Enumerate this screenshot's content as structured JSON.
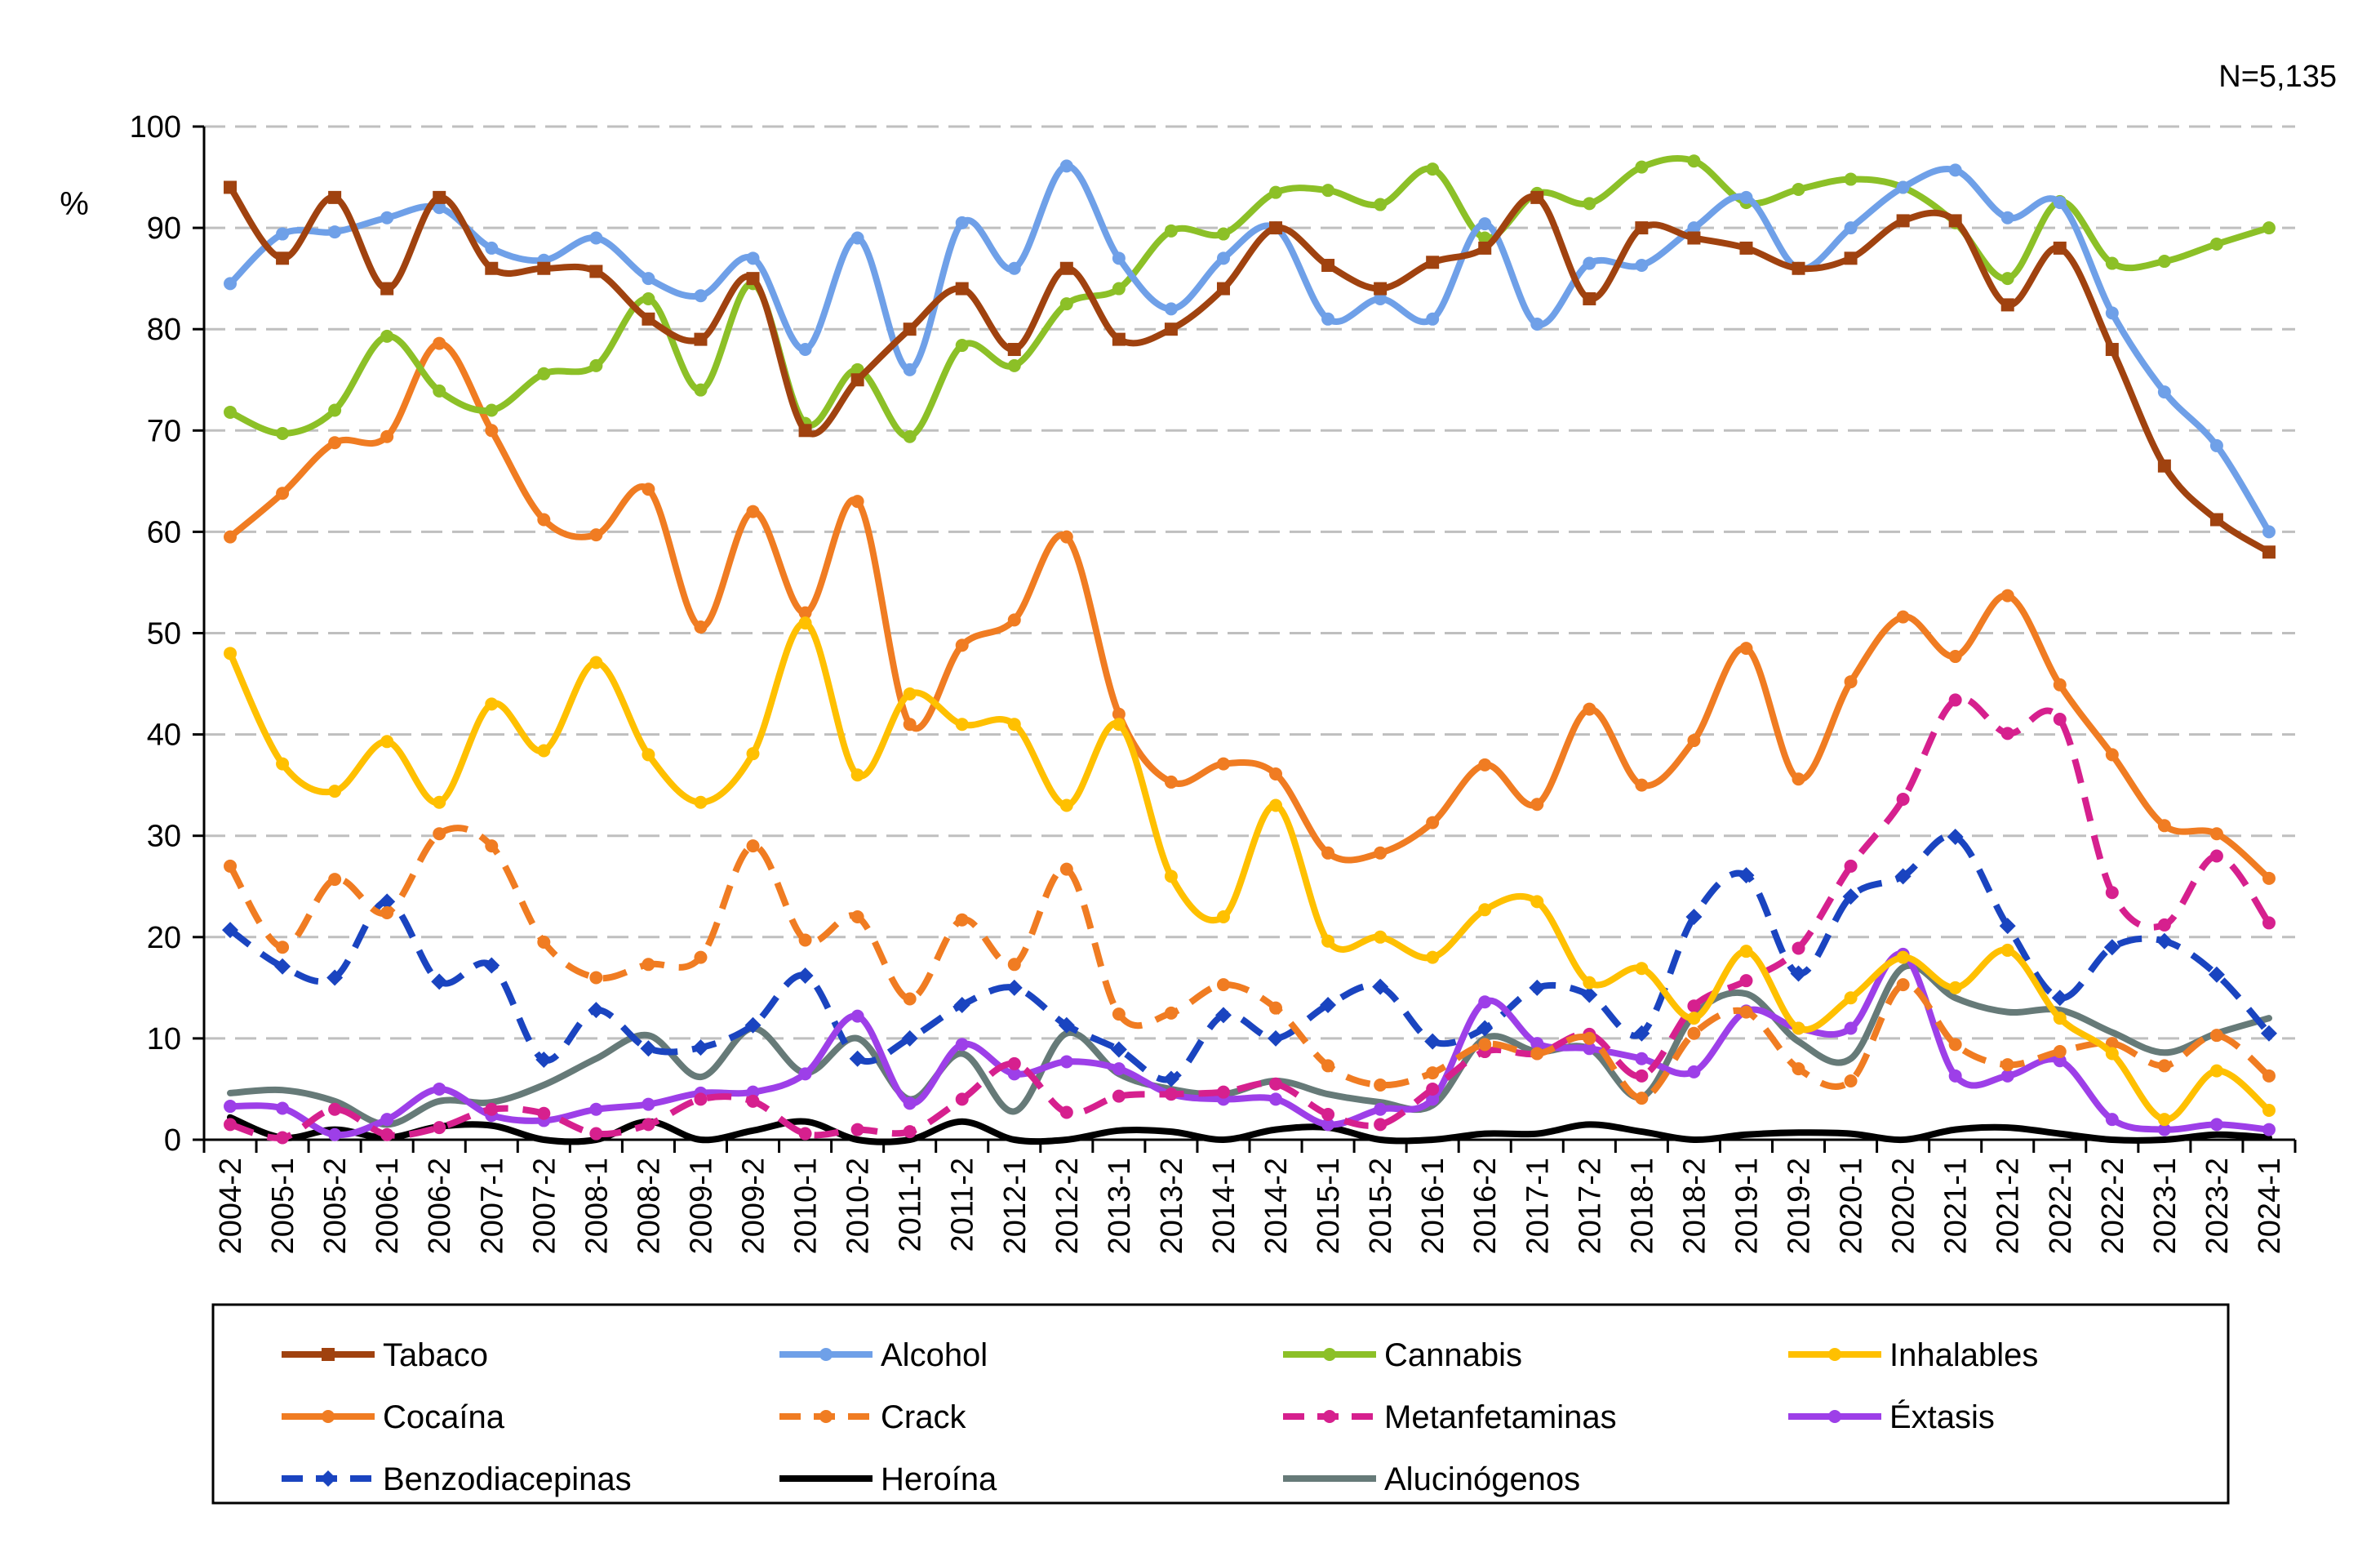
{
  "chart_data": {
    "type": "line",
    "annotation": "N=5,135",
    "ylabel": "%",
    "ylim": [
      0,
      100
    ],
    "yticks": [
      0,
      10,
      20,
      30,
      40,
      50,
      60,
      70,
      80,
      90,
      100
    ],
    "grid": "horizontal-dashed",
    "legend_position": "bottom",
    "categories": [
      "2004-2",
      "2005-1",
      "2005-2",
      "2006-1",
      "2006-2",
      "2007-1",
      "2007-2",
      "2008-1",
      "2008-2",
      "2009-1",
      "2009-2",
      "2010-1",
      "2010-2",
      "2011-1",
      "2011-2",
      "2012-1",
      "2012-2",
      "2013-1",
      "2013-2",
      "2014-1",
      "2014-2",
      "2015-1",
      "2015-2",
      "2016-1",
      "2016-2",
      "2017-1",
      "2017-2",
      "2018-1",
      "2018-2",
      "2019-1",
      "2019-2",
      "2020-1",
      "2020-2",
      "2021-1",
      "2021-2",
      "2022-1",
      "2022-2",
      "2023-1",
      "2023-2",
      "2024-1"
    ],
    "series": [
      {
        "name": "Tabaco",
        "color": "#A0420F",
        "dash": "solid",
        "marker": "square",
        "values": [
          94,
          87,
          93,
          84,
          93,
          86,
          86,
          85.7,
          81,
          79,
          85,
          70,
          75,
          80,
          84,
          78,
          86,
          79,
          80,
          84,
          90,
          86.3,
          84,
          86.6,
          88,
          93,
          83,
          90,
          89,
          88,
          86,
          87,
          90.7,
          90.7,
          82.4,
          88,
          78,
          66.5,
          61.2,
          58
        ]
      },
      {
        "name": "Alcohol",
        "color": "#6FA0E8",
        "dash": "solid",
        "marker": "circle",
        "values": [
          84.5,
          89.4,
          89.6,
          91,
          92,
          88,
          86.8,
          89,
          85,
          83.3,
          87,
          78,
          89,
          76,
          90.5,
          86,
          96.1,
          87,
          82,
          87,
          90,
          81,
          83,
          81,
          90.4,
          80.5,
          86.5,
          86.3,
          90,
          93,
          86,
          90,
          94,
          95.7,
          91,
          92.5,
          81.6,
          73.8,
          68.5,
          60
        ]
      },
      {
        "name": "Cannabis",
        "color": "#8CC027",
        "dash": "solid",
        "marker": "circle",
        "values": [
          71.8,
          69.7,
          72,
          79.3,
          73.9,
          72,
          75.6,
          76.4,
          83,
          74,
          84.5,
          70.7,
          76,
          69.4,
          78.4,
          76.4,
          82.5,
          84,
          89.7,
          89.4,
          93.5,
          93.7,
          92.3,
          95.8,
          89,
          93.4,
          92.4,
          96,
          96.6,
          92.5,
          93.8,
          94.8,
          94,
          90.5,
          85,
          92.6,
          86.5,
          86.7,
          88.4,
          90
        ]
      },
      {
        "name": "Inhalables",
        "color": "#FFC000",
        "dash": "solid",
        "marker": "circle",
        "values": [
          48,
          37.1,
          34.4,
          39.3,
          33.3,
          43,
          38.4,
          47.1,
          38,
          33.3,
          38.1,
          51,
          36,
          44,
          41,
          41,
          33,
          41,
          26,
          22,
          33,
          19.6,
          20,
          18,
          22.7,
          23.5,
          15.5,
          16.9,
          12,
          18.6,
          11,
          14,
          18,
          15,
          18.7,
          12,
          8.5,
          2,
          6.8,
          2.9
        ]
      },
      {
        "name": "Cocaína",
        "color": "#F07C22",
        "dash": "solid",
        "marker": "circle",
        "values": [
          59.5,
          63.8,
          68.8,
          69.4,
          78.6,
          70,
          61.2,
          59.7,
          64.2,
          50.6,
          62,
          52,
          63,
          41,
          48.8,
          51.3,
          59.5,
          42,
          35.3,
          37.1,
          36.1,
          28.3,
          28.3,
          31.3,
          37,
          33.1,
          42.5,
          35,
          39.4,
          48.5,
          35.6,
          45.2,
          51.6,
          47.7,
          53.7,
          44.9,
          38,
          31,
          30.2,
          25.8
        ]
      },
      {
        "name": "Crack",
        "color": "#F07C22",
        "dash": "dashed",
        "marker": "circle",
        "values": [
          27,
          19,
          25.7,
          22.4,
          30.2,
          29,
          19.5,
          16,
          17.3,
          18,
          29,
          19.7,
          22,
          13.9,
          21.7,
          17.3,
          26.7,
          12.4,
          12.5,
          15.3,
          13,
          7.3,
          5.4,
          6.6,
          9.4,
          8.5,
          10,
          4.1,
          10.5,
          12.6,
          7,
          5.8,
          15.3,
          9.4,
          7.4,
          8.7,
          9.5,
          7.3,
          10.3,
          6.3
        ]
      },
      {
        "name": "Metanfetaminas",
        "color": "#D6208E",
        "dash": "dashed",
        "marker": "circle",
        "values": [
          1.5,
          0.2,
          3,
          0.5,
          1.2,
          3,
          2.6,
          0.6,
          1.5,
          4,
          3.8,
          0.6,
          1,
          0.8,
          4,
          7.5,
          2.7,
          4.3,
          4.5,
          4.7,
          5.5,
          2.5,
          1.5,
          5,
          8.7,
          8.5,
          10.4,
          6.3,
          13.2,
          15.7,
          18.9,
          27,
          33.6,
          43.4,
          40.1,
          41.5,
          24.4,
          21.2,
          28,
          21.4
        ]
      },
      {
        "name": "Éxtasis",
        "color": "#9D3FE8",
        "dash": "solid",
        "marker": "circle",
        "values": [
          3.3,
          3.1,
          0.5,
          2,
          5,
          2.4,
          1.9,
          3,
          3.5,
          4.6,
          4.7,
          6.5,
          12.2,
          3.6,
          9.4,
          6.5,
          7.7,
          7,
          4.5,
          4,
          4,
          1.5,
          3,
          4,
          13.6,
          9.5,
          9,
          8,
          6.7,
          12.7,
          11,
          11,
          18.3,
          6.3,
          6.3,
          7.8,
          2,
          1,
          1.5,
          1
        ]
      },
      {
        "name": "Benzodiacepinas",
        "color": "#1A44C0",
        "dash": "dashed",
        "marker": "diamond",
        "values": [
          20.7,
          17.1,
          16,
          23.5,
          15.6,
          17.2,
          7.9,
          12.8,
          9,
          9.1,
          11.3,
          16.2,
          8,
          10,
          13.3,
          15,
          11.3,
          8.9,
          6,
          12.3,
          10,
          13.3,
          15.1,
          9.7,
          11,
          15,
          14.3,
          10.5,
          22,
          26.1,
          16.4,
          24,
          26,
          29.9,
          21.1,
          14,
          19,
          19.6,
          16.3,
          10.5
        ]
      },
      {
        "name": "Heroína",
        "color": "#000000",
        "dash": "solid",
        "marker": "none",
        "values": [
          2.2,
          0.2,
          1,
          0.2,
          1.3,
          1.4,
          0,
          0,
          1.8,
          0,
          0.9,
          1.8,
          0,
          0,
          1.8,
          0,
          0,
          0.9,
          0.8,
          0,
          1,
          1.2,
          0,
          0,
          0.6,
          0.6,
          1.5,
          0.8,
          0,
          0.5,
          0.7,
          0.6,
          0,
          1,
          1.2,
          0.6,
          0,
          0,
          0.5,
          0.2
        ]
      },
      {
        "name": "Alucinógenos",
        "color": "#667A78",
        "dash": "solid",
        "marker": "none",
        "values": [
          4.6,
          4.9,
          3.8,
          1.5,
          3.8,
          3.7,
          5.4,
          8,
          10.3,
          6.2,
          11,
          6.6,
          10,
          4,
          8.5,
          2.8,
          10.5,
          6.5,
          5,
          4.5,
          5.8,
          4.5,
          3.7,
          3.4,
          10,
          8.7,
          9,
          4.2,
          12.3,
          14.4,
          9.7,
          8,
          17,
          14,
          12.6,
          12.8,
          10.6,
          8.6,
          10.5,
          12
        ]
      }
    ]
  }
}
